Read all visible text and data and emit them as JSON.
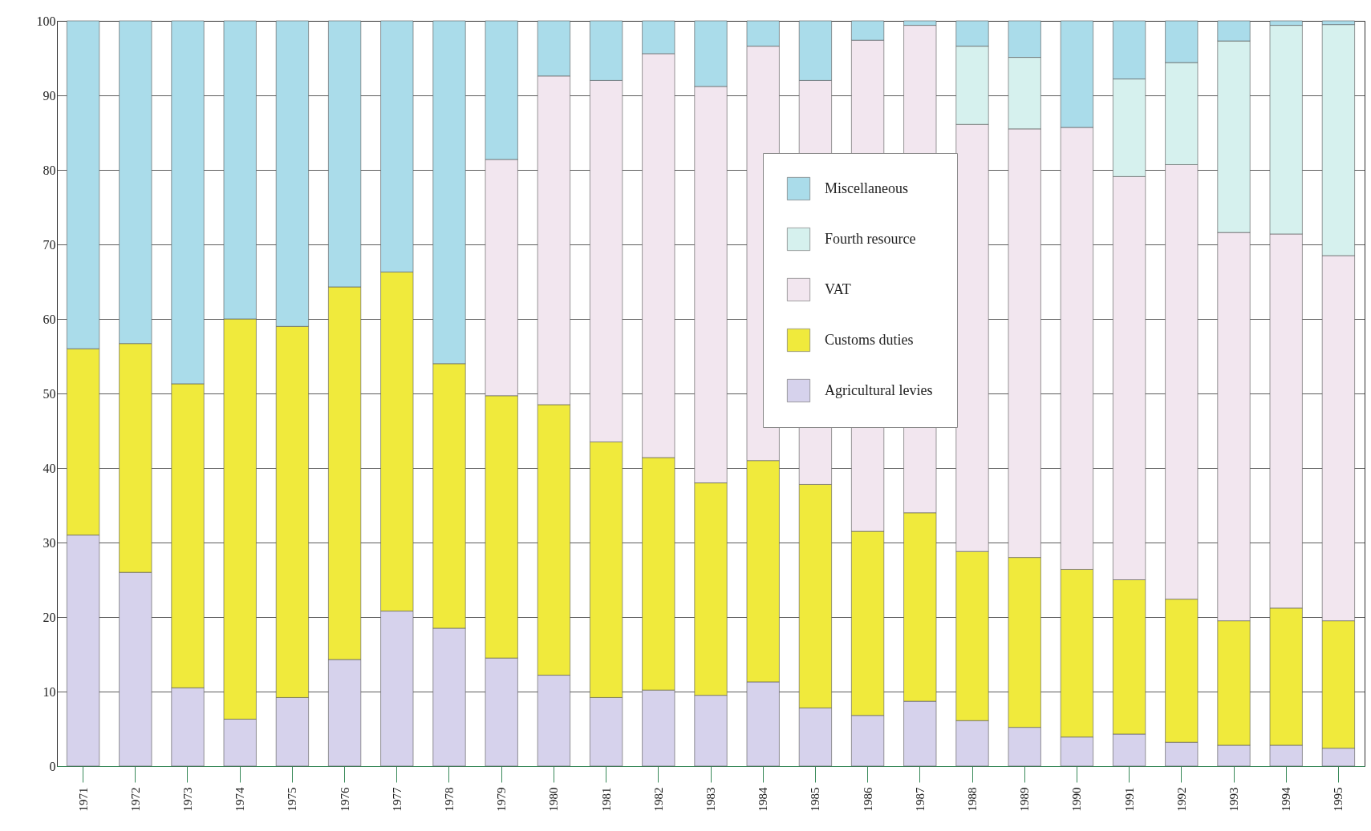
{
  "chart_data": {
    "type": "bar",
    "stacked": true,
    "categories": [
      "1971",
      "1972",
      "1973",
      "1974",
      "1975",
      "1976",
      "1977",
      "1978",
      "1979",
      "1980",
      "1981",
      "1982",
      "1983",
      "1984",
      "1985",
      "1986",
      "1987",
      "1988",
      "1989",
      "1990",
      "1991",
      "1992",
      "1993",
      "1994",
      "1995"
    ],
    "series": [
      {
        "name": "Agricultural levies",
        "color": "#d6d2ec",
        "values": [
          31,
          26,
          10.5,
          6.3,
          9.2,
          14.3,
          20.8,
          18.5,
          14.5,
          12.2,
          9.2,
          10.2,
          9.5,
          11.3,
          7.8,
          6.8,
          8.7,
          6.1,
          5.2,
          3.9,
          4.3,
          3.2,
          2.8,
          2.8,
          2.4
        ]
      },
      {
        "name": "Customs duties",
        "color": "#f0ea3c",
        "values": [
          25,
          30.7,
          40.8,
          53.7,
          49.8,
          50,
          45.5,
          35.5,
          35.2,
          36.3,
          34.3,
          31.2,
          28.5,
          29.7,
          30,
          24.7,
          25.3,
          22.7,
          22.8,
          22.5,
          20.7,
          19.2,
          16.7,
          18.4,
          17.1
        ]
      },
      {
        "name": "VAT",
        "color": "#f2e6ef",
        "values": [
          null,
          null,
          null,
          null,
          null,
          null,
          null,
          null,
          31.7,
          44.1,
          48.5,
          54.2,
          53.2,
          55.6,
          54.2,
          65.9,
          65.4,
          57.3,
          57.5,
          59.3,
          54.1,
          58.3,
          52.1,
          50.2,
          49
        ]
      },
      {
        "name": "Fourth resource",
        "color": "#d6f1ee",
        "values": [
          null,
          null,
          null,
          null,
          null,
          null,
          null,
          null,
          null,
          null,
          null,
          null,
          null,
          null,
          null,
          null,
          null,
          10.5,
          9.6,
          null,
          13.1,
          13.7,
          25.7,
          28,
          31
        ]
      },
      {
        "name": "Miscellaneous",
        "color": "#aadcea",
        "values": [
          44,
          43.3,
          48.7,
          40,
          41,
          35.7,
          33.7,
          46,
          18.6,
          7.4,
          8,
          4.4,
          8.8,
          3.4,
          8,
          2.6,
          0.6,
          3.4,
          4.9,
          14.3,
          7.8,
          5.6,
          2.7,
          0.6,
          0.5
        ]
      }
    ],
    "ylim": [
      0,
      100
    ],
    "yticks": [
      0,
      10,
      20,
      30,
      40,
      50,
      60,
      70,
      80,
      90,
      100
    ],
    "grid": "y",
    "legend": "top right"
  }
}
